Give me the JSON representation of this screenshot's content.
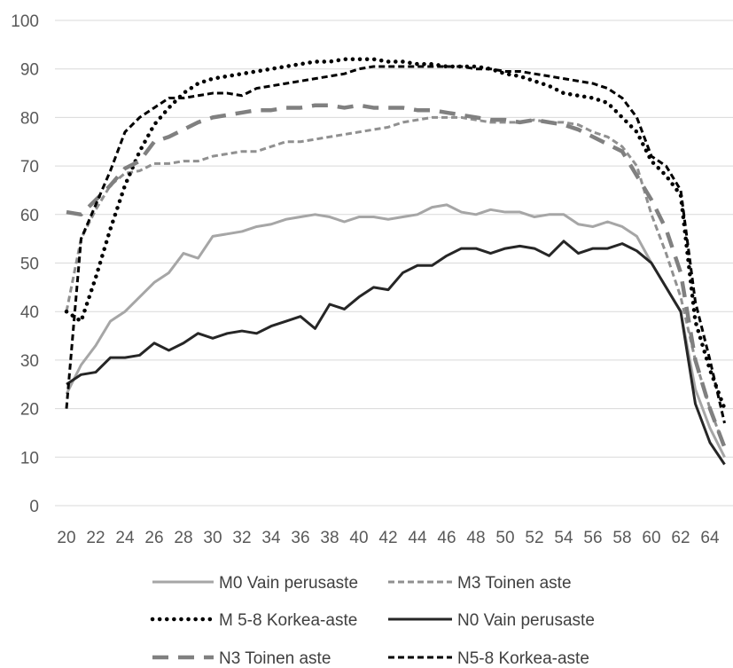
{
  "chart_data": {
    "type": "line",
    "title": "",
    "xlabel": "",
    "ylabel": "",
    "ylim": [
      0,
      100
    ],
    "xlim": [
      20,
      65
    ],
    "yticks": [
      0,
      10,
      20,
      30,
      40,
      50,
      60,
      70,
      80,
      90,
      100
    ],
    "xticks": [
      20,
      22,
      24,
      26,
      28,
      30,
      32,
      34,
      36,
      38,
      40,
      42,
      44,
      46,
      48,
      50,
      52,
      54,
      56,
      58,
      60,
      62,
      64
    ],
    "grid": "horizontal",
    "legend_position": "bottom",
    "x": [
      20,
      21,
      22,
      23,
      24,
      25,
      26,
      27,
      28,
      29,
      30,
      31,
      32,
      33,
      34,
      35,
      36,
      37,
      38,
      39,
      40,
      41,
      42,
      43,
      44,
      45,
      46,
      47,
      48,
      49,
      50,
      51,
      52,
      53,
      54,
      55,
      56,
      57,
      58,
      59,
      60,
      61,
      62,
      63,
      64,
      65
    ],
    "series": [
      {
        "name": "M0 Vain perusaste",
        "color": "#a6a6a6",
        "style": "solid",
        "values": [
          23,
          29,
          33,
          38,
          40,
          43,
          46,
          48,
          52,
          51,
          55.5,
          56,
          56.5,
          57.5,
          58,
          59,
          59.5,
          60,
          59.5,
          58.5,
          59.5,
          59.5,
          59,
          59.5,
          60,
          61.5,
          62,
          60.5,
          60,
          61,
          60.5,
          60.5,
          59.5,
          60,
          60,
          58,
          57.5,
          58.5,
          57.5,
          55.5,
          50,
          45,
          40,
          24,
          16,
          10
        ]
      },
      {
        "name": "M3 Toinen aste",
        "color": "#909090",
        "style": "dash",
        "values": [
          40,
          55,
          61,
          66,
          68.5,
          69,
          70.5,
          70.5,
          71,
          71,
          72,
          72.5,
          73,
          73,
          74,
          75,
          75,
          75.5,
          76,
          76.5,
          77,
          77.5,
          78,
          79,
          79.5,
          80,
          80,
          80,
          79.5,
          79,
          79,
          79,
          79.5,
          79,
          79,
          78.5,
          77,
          76,
          74,
          70,
          60,
          52,
          43,
          30,
          20,
          12
        ]
      },
      {
        "name": "M 5-8 Korkea-aste",
        "color": "#000000",
        "style": "dot",
        "values": [
          40,
          38,
          47,
          57,
          66,
          73,
          78.5,
          82,
          85,
          87,
          88,
          88.5,
          89,
          89.5,
          90,
          90.5,
          91,
          91.5,
          91.5,
          92,
          92,
          92,
          91.5,
          91.5,
          91,
          91,
          90.5,
          90.5,
          90.5,
          90,
          89,
          88.5,
          87.5,
          86.5,
          85,
          84.5,
          84,
          83,
          80,
          77,
          71,
          68,
          64,
          38,
          28,
          20
        ]
      },
      {
        "name": "N0 Vain perusaste",
        "color": "#262626",
        "style": "solid",
        "values": [
          25,
          27,
          27.5,
          30.5,
          30.5,
          31,
          33.5,
          32,
          33.5,
          35.5,
          34.5,
          35.5,
          36,
          35.5,
          37,
          38,
          39,
          36.5,
          41.5,
          40.5,
          43,
          45,
          44.5,
          48,
          49.5,
          49.5,
          51.5,
          53,
          53,
          52,
          53,
          53.5,
          53,
          51.5,
          54.5,
          52,
          53,
          53,
          54,
          52.5,
          50,
          45,
          40,
          21,
          13,
          8.5
        ]
      },
      {
        "name": "N3 Toinen aste",
        "color": "#808080",
        "style": "longdash",
        "values": [
          60.5,
          60,
          63,
          66,
          69.5,
          71,
          75,
          76,
          77.5,
          79,
          80,
          80.5,
          81,
          81.5,
          81.5,
          82,
          82,
          82.5,
          82.5,
          82,
          82.5,
          82,
          82,
          82,
          81.5,
          81.5,
          81,
          80.5,
          80,
          79.5,
          79.5,
          79,
          79.5,
          79,
          78.5,
          77.5,
          76,
          74.5,
          73,
          68,
          63,
          57,
          48,
          30,
          20,
          12
        ]
      },
      {
        "name": "N5-8 Korkea-aste",
        "color": "#000000",
        "style": "dash",
        "values": [
          20,
          55,
          62,
          69,
          77,
          80,
          82,
          84,
          84,
          84.5,
          85,
          85,
          84.5,
          86,
          86.5,
          87,
          87.5,
          88,
          88.5,
          89,
          90,
          90.5,
          90.5,
          90.5,
          90.5,
          90.5,
          90.5,
          90.5,
          90,
          90,
          89.5,
          89.5,
          89,
          88.5,
          88,
          87.5,
          87,
          86,
          84,
          80,
          72,
          70,
          65,
          42,
          30,
          17
        ]
      }
    ]
  }
}
